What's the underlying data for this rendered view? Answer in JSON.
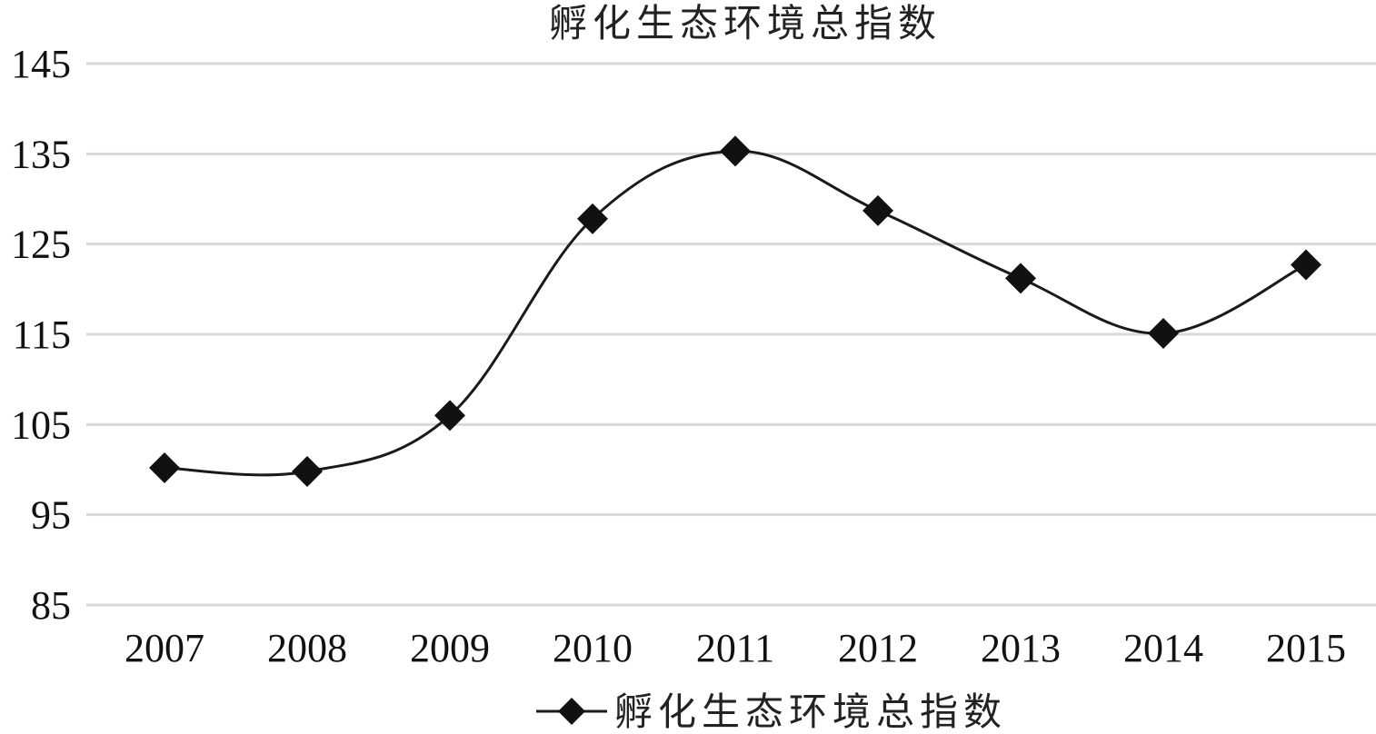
{
  "chart_data": {
    "type": "line",
    "title": "孵化生态环境总指数",
    "categories": [
      "2007",
      "2008",
      "2009",
      "2010",
      "2011",
      "2012",
      "2013",
      "2014",
      "2015"
    ],
    "series": [
      {
        "name": "孵化生态环境总指数",
        "values": [
          100.2,
          99.8,
          106.0,
          127.8,
          135.3,
          128.7,
          121.2,
          115.1,
          122.7
        ],
        "color": "#111111",
        "marker": "diamond"
      }
    ],
    "yticks": [
      "85",
      "95",
      "105",
      "115",
      "125",
      "135",
      "145"
    ],
    "ylim": [
      85,
      145
    ],
    "xlabel": "",
    "ylabel": "",
    "grid": true,
    "legend": "bottom-center"
  }
}
